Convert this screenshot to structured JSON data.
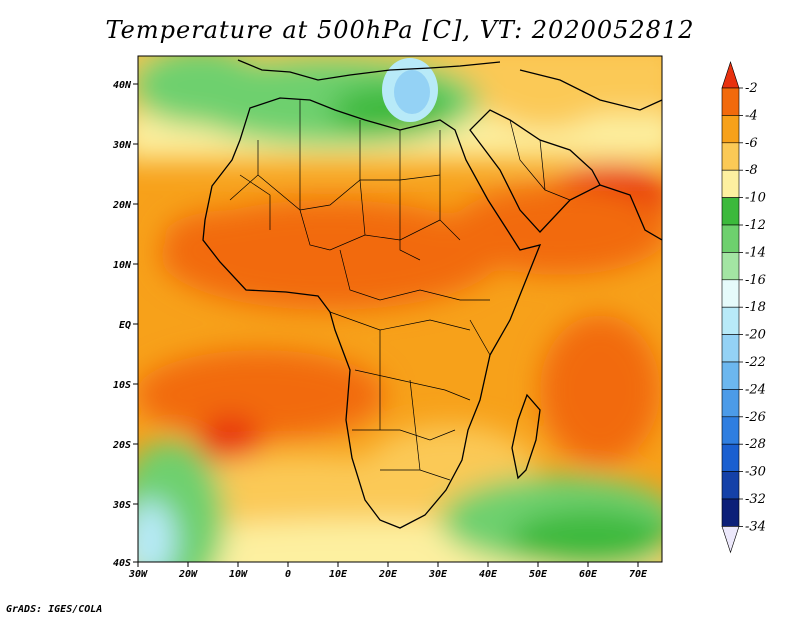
{
  "title": "Temperature at 500hPa [C], VT: 2020052812",
  "footer": "GrADS: IGES/COLA",
  "map": {
    "lon_ticks": [
      "30W",
      "20W",
      "10W",
      "0",
      "10E",
      "20E",
      "30E",
      "40E",
      "50E",
      "60E",
      "70E"
    ],
    "lat_ticks": [
      "40N",
      "30N",
      "20N",
      "10N",
      "EQ",
      "10S",
      "20S",
      "30S",
      "40S"
    ]
  },
  "colorbar": {
    "levels": [
      "-2",
      "-4",
      "-6",
      "-8",
      "-10",
      "-12",
      "-14",
      "-16",
      "-18",
      "-20",
      "-22",
      "-24",
      "-26",
      "-28",
      "-30",
      "-32",
      "-34"
    ],
    "colors": [
      "#e8310f",
      "#f26a0c",
      "#f7a11a",
      "#fbc956",
      "#fdf0a0",
      "#3cb93c",
      "#6ed06e",
      "#a3e5a3",
      "#e6fbfb",
      "#b8eaf8",
      "#94d2f5",
      "#6cb7ef",
      "#4c9be8",
      "#2f7ee0",
      "#1a5fd0",
      "#1441a8",
      "#0c1f78"
    ]
  }
}
